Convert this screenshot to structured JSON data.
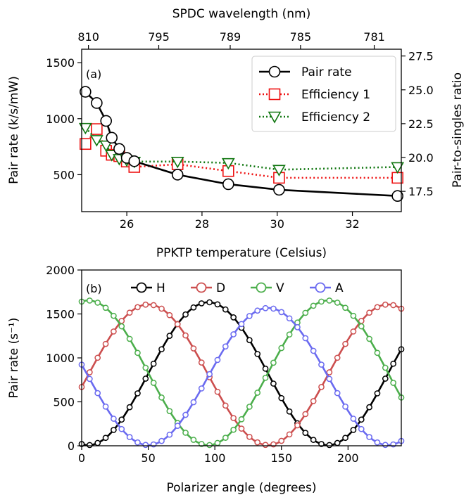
{
  "chart_data": [
    {
      "type": "line",
      "panel_label": "(a)",
      "xlabel": "PPKTP temperature (Celsius)",
      "ylabel": "Pair rate (k/s/mW)",
      "y2label": "Pair-to-singles ratio",
      "x2label": "SPDC wavelength (nm)",
      "xlim": [
        24.8,
        33.3
      ],
      "ylim": [
        170,
        1620
      ],
      "y2lim": [
        16.0,
        28.0
      ],
      "x_ticks": [
        26,
        28,
        30,
        32
      ],
      "y_ticks": [
        500,
        1000,
        1500
      ],
      "y2_ticks": [
        17.5,
        20.0,
        22.5,
        25.0,
        27.5
      ],
      "x2_ticks": [
        {
          "temp": 24.98,
          "label": "810"
        },
        {
          "temp": 26.85,
          "label": "795"
        },
        {
          "temp": 28.75,
          "label": "789"
        },
        {
          "temp": 30.62,
          "label": "785"
        },
        {
          "temp": 32.58,
          "label": "781"
        }
      ],
      "legend_position": "upper right",
      "series": [
        {
          "name": "Pair rate",
          "axis": "left",
          "color": "#000000",
          "linestyle": "solid",
          "marker": "circle",
          "x": [
            24.9,
            25.2,
            25.45,
            25.6,
            25.8,
            26.0,
            26.2,
            27.35,
            28.7,
            30.05,
            33.2
          ],
          "y": [
            1240,
            1140,
            980,
            830,
            730,
            650,
            620,
            500,
            415,
            365,
            310
          ]
        },
        {
          "name": "Efficiency 1",
          "axis": "right",
          "color": "#ee1111",
          "linestyle": "dotted",
          "marker": "square",
          "x": [
            24.9,
            25.2,
            25.45,
            25.6,
            25.8,
            26.0,
            26.2,
            27.35,
            28.7,
            30.05,
            33.2
          ],
          "y": [
            21.0,
            22.1,
            20.5,
            20.2,
            20.1,
            19.7,
            19.3,
            19.5,
            19.0,
            18.5,
            18.5
          ]
        },
        {
          "name": "Efficiency 2",
          "axis": "right",
          "color": "#117711",
          "linestyle": "dotted",
          "marker": "triangle-down",
          "x": [
            24.9,
            25.2,
            25.45,
            25.6,
            25.8,
            26.0,
            26.2,
            27.35,
            28.7,
            30.05,
            33.2
          ],
          "y": [
            22.2,
            21.3,
            20.9,
            20.2,
            19.9,
            19.8,
            19.7,
            19.7,
            19.6,
            19.1,
            19.3
          ]
        }
      ]
    },
    {
      "type": "line",
      "panel_label": "(b)",
      "xlabel": "Polarizer angle (degrees)",
      "ylabel": "Pair rate (s⁻¹)",
      "xlim": [
        0,
        240
      ],
      "ylim": [
        0,
        2000
      ],
      "x_ticks": [
        0,
        50,
        100,
        150,
        200
      ],
      "y_ticks": [
        0,
        500,
        1000,
        1500,
        2000
      ],
      "legend_position": "top",
      "angle_step_deg": 6,
      "series": [
        {
          "name": "H",
          "color": "#000000",
          "amplitude": 1625,
          "offset": 8,
          "peak_angle": 95
        },
        {
          "name": "D",
          "color": "#cc4e4e",
          "amplitude": 1600,
          "offset": 8,
          "peak_angle": 50
        },
        {
          "name": "V",
          "color": "#4bae4b",
          "amplitude": 1645,
          "offset": 8,
          "peak_angle": 5
        },
        {
          "name": "A",
          "color": "#6a6af0",
          "amplitude": 1560,
          "offset": 8,
          "peak_angle": 140
        }
      ]
    }
  ]
}
